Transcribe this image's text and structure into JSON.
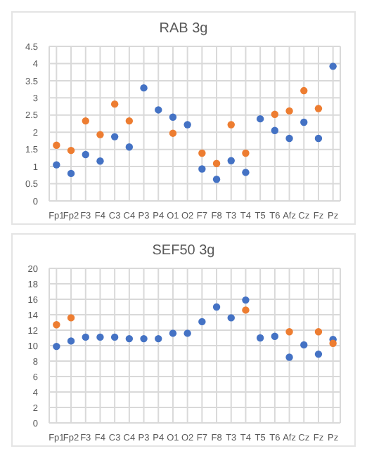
{
  "chart_data": [
    {
      "type": "scatter",
      "title": "RAB  3g",
      "categories": [
        "Fp1",
        "Fp2",
        "F3",
        "F4",
        "C3",
        "C4",
        "P3",
        "P4",
        "O1",
        "O2",
        "F7",
        "F8",
        "T3",
        "T4",
        "T5",
        "T6",
        "Afz",
        "Cz",
        "Fz",
        "Pz"
      ],
      "series": [
        {
          "color": "#4472c4",
          "values": [
            1.05,
            0.8,
            1.35,
            1.16,
            1.87,
            1.57,
            3.29,
            2.65,
            2.44,
            2.22,
            0.93,
            0.63,
            1.17,
            0.83,
            2.39,
            2.05,
            1.82,
            2.29,
            1.82,
            3.92
          ]
        },
        {
          "color": "#ed7d31",
          "values": [
            1.62,
            1.47,
            2.33,
            1.93,
            2.82,
            2.33,
            null,
            null,
            1.97,
            null,
            1.39,
            1.09,
            2.22,
            1.39,
            null,
            2.52,
            2.62,
            3.21,
            2.69,
            null
          ]
        }
      ],
      "ylim": [
        0,
        4.5
      ],
      "yticks": [
        0,
        0.5,
        1,
        1.5,
        2,
        2.5,
        3,
        3.5,
        4,
        4.5
      ],
      "grid": true,
      "marker": "circle"
    },
    {
      "type": "scatter",
      "title": "SEF50 3g",
      "categories": [
        "Fp1",
        "Fp2",
        "F3",
        "F4",
        "C3",
        "C4",
        "P3",
        "P4",
        "O1",
        "O2",
        "F7",
        "F8",
        "T3",
        "T4",
        "T5",
        "T6",
        "Afz",
        "Cz",
        "Fz",
        "Pz"
      ],
      "series": [
        {
          "color": "#4472c4",
          "values": [
            9.9,
            10.6,
            11.1,
            11.1,
            11.1,
            10.9,
            10.9,
            10.9,
            11.6,
            11.6,
            13.1,
            15.0,
            13.6,
            15.9,
            11.0,
            11.2,
            8.5,
            10.1,
            8.9,
            10.8
          ]
        },
        {
          "color": "#ed7d31",
          "values": [
            12.7,
            13.6,
            null,
            null,
            null,
            null,
            null,
            null,
            null,
            null,
            null,
            null,
            null,
            14.6,
            null,
            null,
            11.8,
            null,
            11.8,
            10.3
          ]
        }
      ],
      "ylim": [
        0,
        20
      ],
      "yticks": [
        0,
        2,
        4,
        6,
        8,
        10,
        12,
        14,
        16,
        18,
        20
      ],
      "grid": true,
      "marker": "circle"
    }
  ]
}
